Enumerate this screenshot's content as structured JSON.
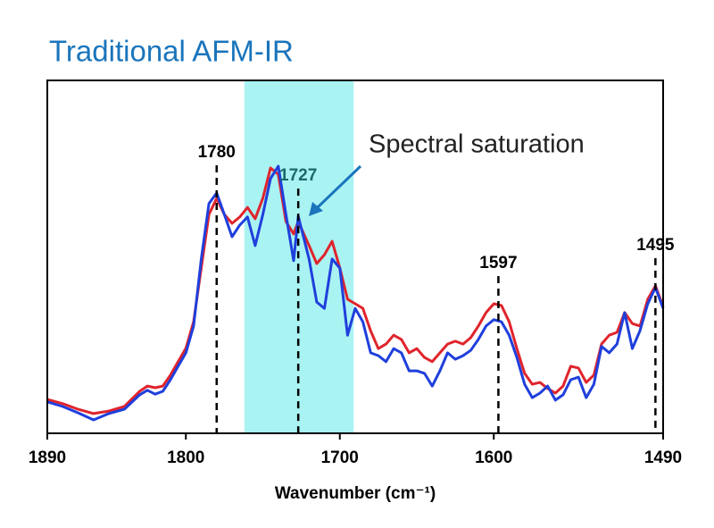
{
  "chart_data": {
    "type": "line",
    "title": "Traditional AFM-IR",
    "xlabel": "Wavenumber (cm⁻¹)",
    "xlim": [
      1890,
      1490
    ],
    "xticks": [
      1890,
      1800,
      1700,
      1600,
      1490
    ],
    "ylim": [
      0,
      100
    ],
    "highlight": [
      1762,
      1691
    ],
    "highlight_color": "#aaf3f3",
    "annotations": [
      {
        "x": 1780,
        "color": "#000000"
      },
      {
        "x": 1727,
        "color": "#1b6a6a"
      },
      {
        "x": 1597,
        "color": "#000000"
      },
      {
        "x": 1495,
        "color": "#000000"
      }
    ],
    "note": "Spectral saturation",
    "x": [
      1890,
      1880,
      1870,
      1860,
      1850,
      1840,
      1830,
      1825,
      1820,
      1815,
      1810,
      1805,
      1800,
      1795,
      1790,
      1785,
      1780,
      1775,
      1770,
      1765,
      1760,
      1755,
      1750,
      1745,
      1740,
      1735,
      1730,
      1727,
      1720,
      1715,
      1710,
      1705,
      1700,
      1695,
      1690,
      1685,
      1680,
      1675,
      1670,
      1665,
      1660,
      1655,
      1650,
      1645,
      1640,
      1635,
      1630,
      1625,
      1620,
      1615,
      1610,
      1605,
      1600,
      1595,
      1590,
      1585,
      1580,
      1575,
      1570,
      1565,
      1560,
      1555,
      1550,
      1545,
      1540,
      1535,
      1530,
      1525,
      1520,
      1515,
      1510,
      1505,
      1500,
      1495,
      1490
    ],
    "series": [
      {
        "color": "#e0242c",
        "values": [
          9.6,
          8.4,
          6.8,
          5.6,
          6.3,
          7.6,
          11.9,
          13.4,
          12.9,
          13.4,
          16.5,
          20.3,
          24.1,
          31.6,
          46.8,
          62,
          66.6,
          62,
          59.5,
          61.3,
          64,
          60.8,
          66.6,
          75.2,
          73.4,
          60,
          56.5,
          60,
          53.2,
          48.1,
          50.6,
          54.4,
          46.8,
          38,
          36.7,
          35.4,
          29,
          24,
          25.3,
          27.8,
          26.6,
          22.8,
          24,
          21.5,
          20.3,
          22.8,
          25.3,
          26.1,
          25.3,
          27.1,
          30.4,
          34.2,
          36.7,
          36.2,
          31.6,
          24,
          17,
          13.9,
          14.4,
          12.7,
          11.4,
          13.4,
          19,
          18.5,
          14.4,
          16.5,
          25.3,
          27.8,
          28.6,
          34.2,
          31.1,
          30.4,
          38,
          41.8,
          35.9
        ]
      },
      {
        "color": "#1f3fdc",
        "values": [
          8.9,
          7.6,
          5.8,
          3.8,
          5.6,
          6.8,
          10.9,
          12.2,
          11.1,
          11.9,
          15.2,
          19,
          22.8,
          30.4,
          49.4,
          65.1,
          68.1,
          62,
          55.7,
          59,
          61.3,
          53.2,
          62,
          72.2,
          75.7,
          62,
          48.9,
          61.5,
          49.4,
          37.2,
          35.4,
          49.4,
          46.8,
          27.8,
          35.4,
          31.6,
          22.8,
          22,
          20.3,
          24,
          22.8,
          17.7,
          17.7,
          17,
          13.4,
          17.7,
          22.8,
          21,
          22,
          23.5,
          26.6,
          30.4,
          32.2,
          31.6,
          27.8,
          21.5,
          13.9,
          10.1,
          11.4,
          13.4,
          9.4,
          10.9,
          15.2,
          15.9,
          10.1,
          13.9,
          24.6,
          22.8,
          25.3,
          34.2,
          24,
          29.1,
          36.7,
          41.3,
          35.4
        ]
      }
    ]
  }
}
